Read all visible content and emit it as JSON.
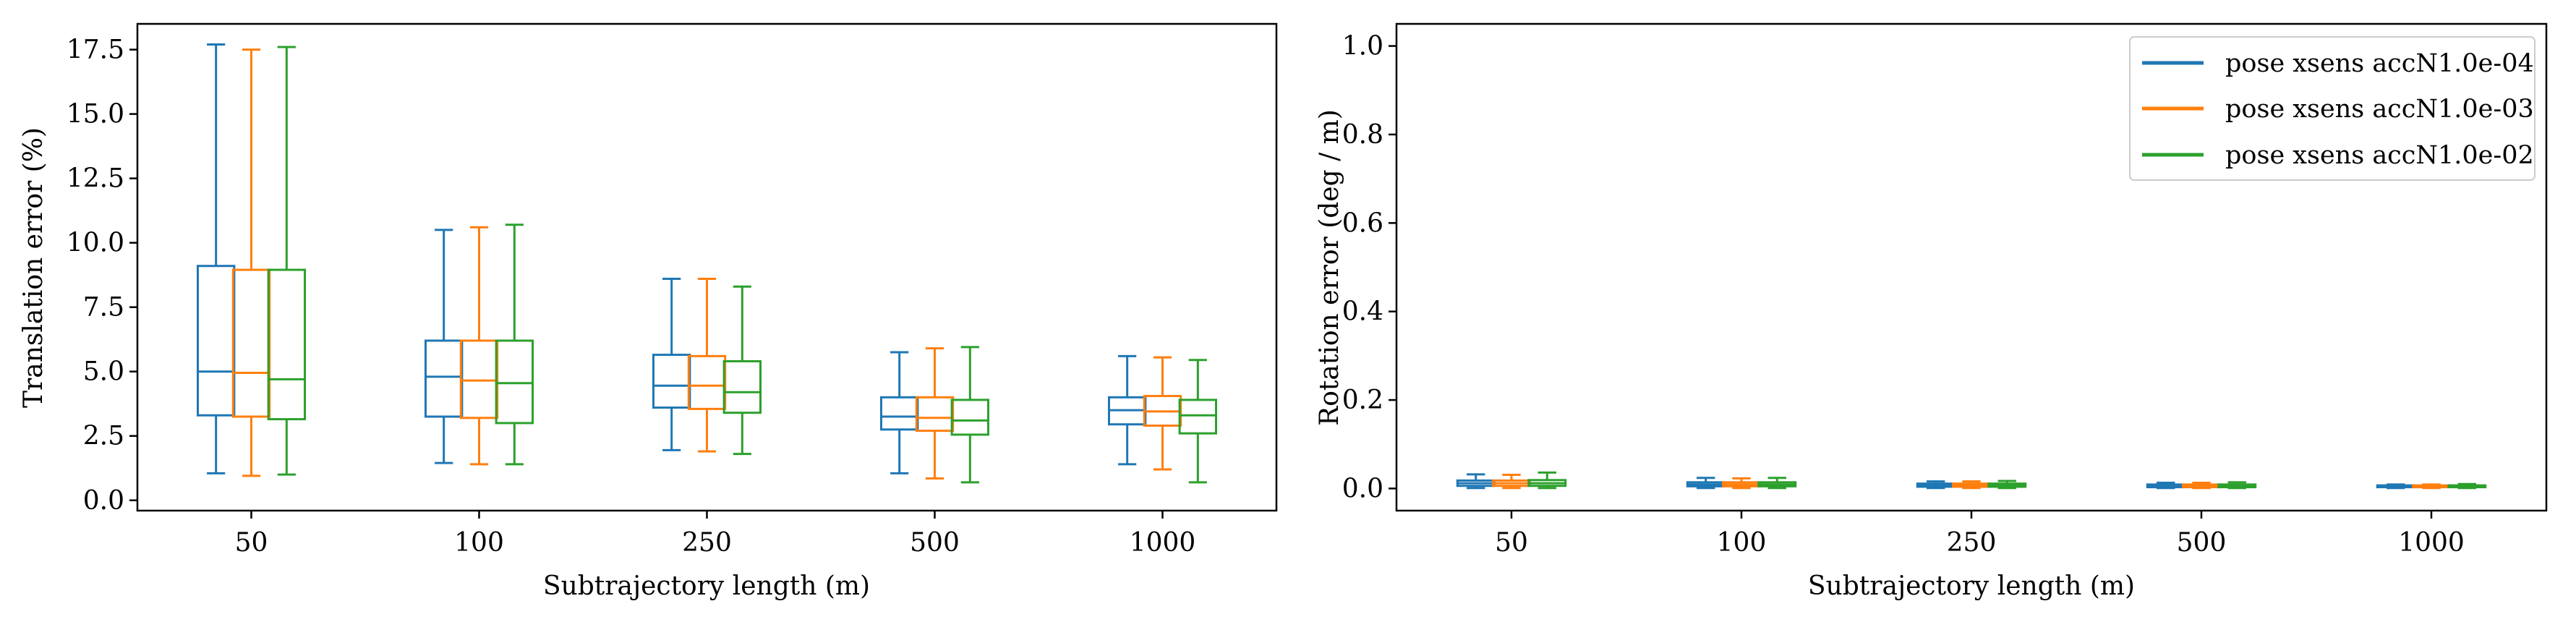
{
  "chart_data": [
    {
      "type": "box",
      "xlabel": "Subtrajectory length (m)",
      "ylabel": "Translation error (%)",
      "ylim": [
        -0.4,
        18.5
      ],
      "yticks": [
        "0.0",
        "2.5",
        "5.0",
        "7.5",
        "10.0",
        "12.5",
        "15.0",
        "17.5"
      ],
      "categories": [
        "50",
        "100",
        "250",
        "500",
        "1000"
      ],
      "grid": false,
      "series": [
        {
          "name": "pose xsens accN1.0e-04",
          "color": "#1f77b4",
          "boxes": [
            {
              "whislo": 1.05,
              "q1": 3.3,
              "med": 5.0,
              "q3": 9.1,
              "whishi": 17.7
            },
            {
              "whislo": 1.45,
              "q1": 3.25,
              "med": 4.8,
              "q3": 6.2,
              "whishi": 10.5
            },
            {
              "whislo": 1.95,
              "q1": 3.6,
              "med": 4.45,
              "q3": 5.65,
              "whishi": 8.6
            },
            {
              "whislo": 1.05,
              "q1": 2.75,
              "med": 3.25,
              "q3": 4.0,
              "whishi": 5.75
            },
            {
              "whislo": 1.4,
              "q1": 2.95,
              "med": 3.5,
              "q3": 4.0,
              "whishi": 5.6
            }
          ]
        },
        {
          "name": "pose xsens accN1.0e-03",
          "color": "#ff7f0e",
          "boxes": [
            {
              "whislo": 0.95,
              "q1": 3.25,
              "med": 4.95,
              "q3": 8.95,
              "whishi": 17.5
            },
            {
              "whislo": 1.4,
              "q1": 3.2,
              "med": 4.65,
              "q3": 6.2,
              "whishi": 10.6
            },
            {
              "whislo": 1.9,
              "q1": 3.55,
              "med": 4.45,
              "q3": 5.6,
              "whishi": 8.6
            },
            {
              "whislo": 0.85,
              "q1": 2.7,
              "med": 3.2,
              "q3": 4.0,
              "whishi": 5.9
            },
            {
              "whislo": 1.2,
              "q1": 2.9,
              "med": 3.45,
              "q3": 4.05,
              "whishi": 5.55
            }
          ]
        },
        {
          "name": "pose xsens accN1.0e-02",
          "color": "#2ca02c",
          "boxes": [
            {
              "whislo": 1.0,
              "q1": 3.15,
              "med": 4.7,
              "q3": 8.95,
              "whishi": 17.6
            },
            {
              "whislo": 1.4,
              "q1": 3.0,
              "med": 4.55,
              "q3": 6.2,
              "whishi": 10.7
            },
            {
              "whislo": 1.8,
              "q1": 3.4,
              "med": 4.2,
              "q3": 5.4,
              "whishi": 8.3
            },
            {
              "whislo": 0.7,
              "q1": 2.55,
              "med": 3.1,
              "q3": 3.9,
              "whishi": 5.95
            },
            {
              "whislo": 0.7,
              "q1": 2.6,
              "med": 3.3,
              "q3": 3.9,
              "whishi": 5.45
            }
          ]
        }
      ]
    },
    {
      "type": "box",
      "xlabel": "Subtrajectory length (m)",
      "ylabel": "Rotation error (deg / m)",
      "ylim": [
        -0.05,
        1.05
      ],
      "yticks": [
        "0.0",
        "0.2",
        "0.4",
        "0.6",
        "0.8",
        "1.0"
      ],
      "categories": [
        "50",
        "100",
        "250",
        "500",
        "1000"
      ],
      "grid": false,
      "legend": "top-right",
      "series": [
        {
          "name": "pose xsens accN1.0e-04",
          "color": "#1f77b4",
          "boxes": [
            {
              "whislo": 0.001,
              "q1": 0.006,
              "med": 0.012,
              "q3": 0.018,
              "whishi": 0.032
            },
            {
              "whislo": 0.001,
              "q1": 0.005,
              "med": 0.009,
              "q3": 0.014,
              "whishi": 0.024
            },
            {
              "whislo": 0.001,
              "q1": 0.004,
              "med": 0.007,
              "q3": 0.011,
              "whishi": 0.016
            },
            {
              "whislo": 0.001,
              "q1": 0.003,
              "med": 0.006,
              "q3": 0.009,
              "whishi": 0.013
            },
            {
              "whislo": 0.001,
              "q1": 0.003,
              "med": 0.005,
              "q3": 0.007,
              "whishi": 0.009
            }
          ]
        },
        {
          "name": "pose xsens accN1.0e-03",
          "color": "#ff7f0e",
          "boxes": [
            {
              "whislo": 0.001,
              "q1": 0.006,
              "med": 0.012,
              "q3": 0.018,
              "whishi": 0.031
            },
            {
              "whislo": 0.001,
              "q1": 0.005,
              "med": 0.009,
              "q3": 0.014,
              "whishi": 0.023
            },
            {
              "whislo": 0.001,
              "q1": 0.004,
              "med": 0.007,
              "q3": 0.011,
              "whishi": 0.016
            },
            {
              "whislo": 0.001,
              "q1": 0.003,
              "med": 0.006,
              "q3": 0.009,
              "whishi": 0.013
            },
            {
              "whislo": 0.001,
              "q1": 0.003,
              "med": 0.005,
              "q3": 0.007,
              "whishi": 0.009
            }
          ]
        },
        {
          "name": "pose xsens accN1.0e-02",
          "color": "#2ca02c",
          "boxes": [
            {
              "whislo": 0.001,
              "q1": 0.006,
              "med": 0.012,
              "q3": 0.019,
              "whishi": 0.036
            },
            {
              "whislo": 0.001,
              "q1": 0.005,
              "med": 0.009,
              "q3": 0.014,
              "whishi": 0.024
            },
            {
              "whislo": 0.001,
              "q1": 0.004,
              "med": 0.007,
              "q3": 0.011,
              "whishi": 0.017
            },
            {
              "whislo": 0.001,
              "q1": 0.003,
              "med": 0.006,
              "q3": 0.009,
              "whishi": 0.014
            },
            {
              "whislo": 0.001,
              "q1": 0.003,
              "med": 0.005,
              "q3": 0.007,
              "whishi": 0.01
            }
          ]
        }
      ]
    }
  ]
}
